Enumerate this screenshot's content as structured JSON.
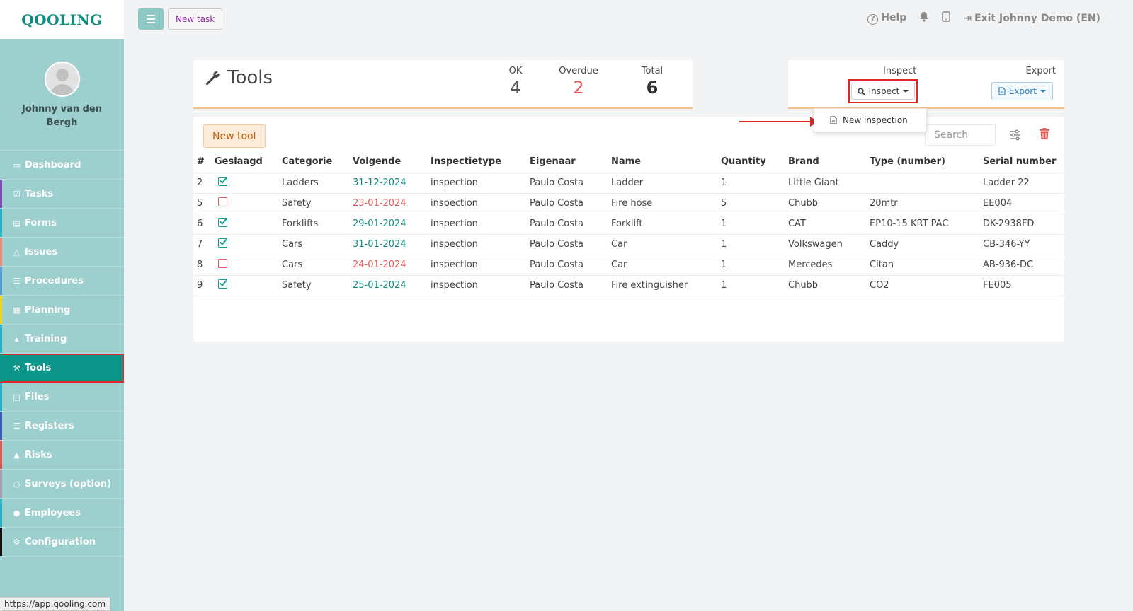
{
  "app": {
    "logo": "QOOLING"
  },
  "user": {
    "name": "Johnny van den Bergh"
  },
  "topbar": {
    "new_task_label": "New task",
    "help_label": "Help",
    "exit_label": "Exit Johnny Demo (EN)"
  },
  "sidebar": {
    "items": [
      {
        "label": "Dashboard",
        "icon": "monitor-icon",
        "strip": "#9ccfcd"
      },
      {
        "label": "Tasks",
        "icon": "check-square-icon",
        "strip": "#7b4fb0"
      },
      {
        "label": "Forms",
        "icon": "document-icon",
        "strip": "#2fb5c7"
      },
      {
        "label": "Issues",
        "icon": "bell-icon",
        "strip": "#e88a7a"
      },
      {
        "label": "Procedures",
        "icon": "list-icon",
        "strip": "#5aa0d0"
      },
      {
        "label": "Planning",
        "icon": "calendar-icon",
        "strip": "#f0d22c"
      },
      {
        "label": "Training",
        "icon": "graduation-cap-icon",
        "strip": "#2fb5c7"
      },
      {
        "label": "Tools",
        "icon": "wrench-icon",
        "strip": "#0d968a"
      },
      {
        "label": "Files",
        "icon": "file-icon",
        "strip": "#2fb5c7"
      },
      {
        "label": "Registers",
        "icon": "list-icon",
        "strip": "#3b5bb0"
      },
      {
        "label": "Risks",
        "icon": "warning-icon",
        "strip": "#e05a5a"
      },
      {
        "label": "Surveys (option)",
        "icon": "speech-bubble-icon",
        "strip": "#9aa0a6"
      },
      {
        "label": "Employees",
        "icon": "users-icon",
        "strip": "#2fb5c7"
      },
      {
        "label": "Configuration",
        "icon": "gear-icon",
        "strip": "#111111"
      }
    ],
    "active": "Tools"
  },
  "status_url": "https://app.qooling.com",
  "tools_header": {
    "title": "Tools",
    "ok_label": "OK",
    "ok_value": "4",
    "overdue_label": "Overdue",
    "overdue_value": "2",
    "total_label": "Total",
    "total_value": "6"
  },
  "actions": {
    "inspect_label": "Inspect",
    "inspect_button": "Inspect",
    "export_label": "Export",
    "export_button": "Export",
    "dropdown_item": "New inspection"
  },
  "table": {
    "new_tool_label": "New tool",
    "search_placeholder": "Search",
    "columns": [
      "#",
      "Geslaagd",
      "Categorie",
      "Volgende",
      "Inspectietype",
      "Eigenaar",
      "Name",
      "Quantity",
      "Brand",
      "Type (number)",
      "Serial number"
    ],
    "rows": [
      {
        "id": "2",
        "passed": true,
        "category": "Ladders",
        "next": "31-12-2024",
        "overdue": false,
        "type": "inspection",
        "owner": "Paulo Costa",
        "name": "Ladder",
        "quantity": "1",
        "brand": "Little Giant",
        "model": "",
        "serial": "Ladder 22"
      },
      {
        "id": "5",
        "passed": false,
        "category": "Safety",
        "next": "23-01-2024",
        "overdue": true,
        "type": "inspection",
        "owner": "Paulo Costa",
        "name": "Fire hose",
        "quantity": "5",
        "brand": "Chubb",
        "model": "20mtr",
        "serial": "EE004"
      },
      {
        "id": "6",
        "passed": true,
        "category": "Forklifts",
        "next": "29-01-2024",
        "overdue": false,
        "type": "inspection",
        "owner": "Paulo Costa",
        "name": "Forklift",
        "quantity": "1",
        "brand": "CAT",
        "model": "EP10-15 KRT PAC",
        "serial": "DK-2938FD"
      },
      {
        "id": "7",
        "passed": true,
        "category": "Cars",
        "next": "31-01-2024",
        "overdue": false,
        "type": "inspection",
        "owner": "Paulo Costa",
        "name": "Car",
        "quantity": "1",
        "brand": "Volkswagen",
        "model": "Caddy",
        "serial": "CB-346-YY"
      },
      {
        "id": "8",
        "passed": false,
        "category": "Cars",
        "next": "24-01-2024",
        "overdue": true,
        "type": "inspection",
        "owner": "Paulo Costa",
        "name": "Car",
        "quantity": "1",
        "brand": "Mercedes",
        "model": "Citan",
        "serial": "AB-936-DC"
      },
      {
        "id": "9",
        "passed": true,
        "category": "Safety",
        "next": "25-01-2024",
        "overdue": false,
        "type": "inspection",
        "owner": "Paulo Costa",
        "name": "Fire extinguisher",
        "quantity": "1",
        "brand": "Chubb",
        "model": "CO2",
        "serial": "FE005"
      }
    ]
  },
  "colors": {
    "brand": "#0f8c80",
    "sidebar_bg": "#9ccfcd",
    "active_nav": "#0d968a",
    "overdue": "#e05a5a",
    "highlight": "#e02626"
  }
}
